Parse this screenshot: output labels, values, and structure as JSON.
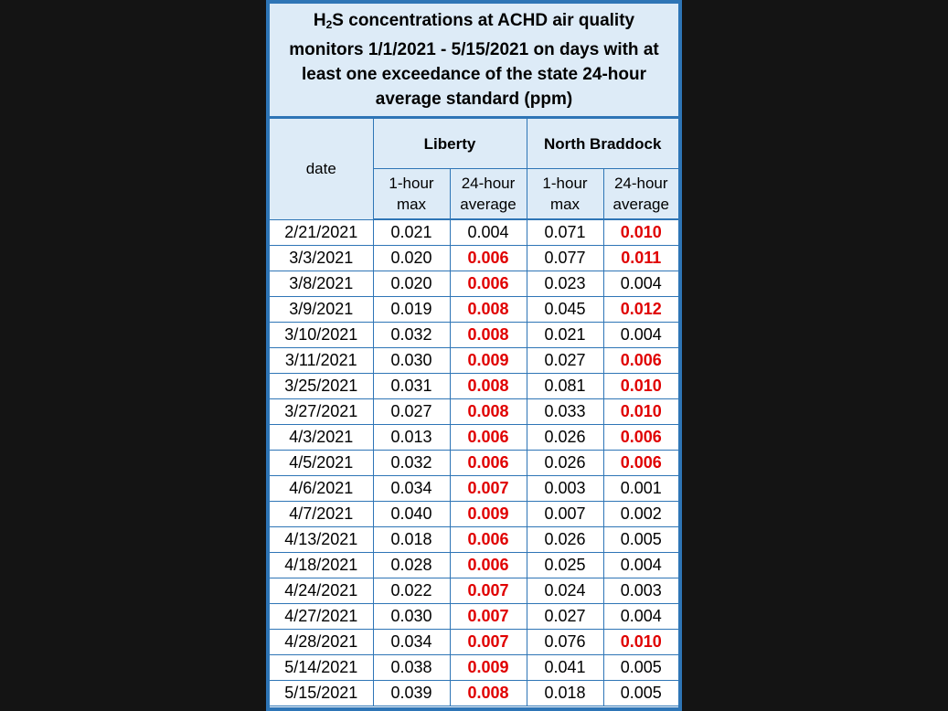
{
  "title": {
    "prefix": "H",
    "subscript": "2",
    "rest": "S concentrations at ACHD air quality monitors 1/1/2021 - 5/15/2021 on days with at least one exceedance of the state 24-hour average standard (ppm)"
  },
  "headers": {
    "date": "date",
    "liberty": "Liberty",
    "north_braddock": "North Braddock",
    "one_hour_max": "1-hour max",
    "twenty_four_hour_avg": "24-hour average"
  },
  "colors": {
    "border": "#2e75b6",
    "header_bg": "#ddebf7",
    "exceedance": "#e00000"
  },
  "rows": [
    {
      "date": "2/21/2021",
      "lib_max": "0.021",
      "lib_avg": "0.004",
      "lib_avg_ex": false,
      "nb_max": "0.071",
      "nb_avg": "0.010",
      "nb_avg_ex": true
    },
    {
      "date": "3/3/2021",
      "lib_max": "0.020",
      "lib_avg": "0.006",
      "lib_avg_ex": true,
      "nb_max": "0.077",
      "nb_avg": "0.011",
      "nb_avg_ex": true
    },
    {
      "date": "3/8/2021",
      "lib_max": "0.020",
      "lib_avg": "0.006",
      "lib_avg_ex": true,
      "nb_max": "0.023",
      "nb_avg": "0.004",
      "nb_avg_ex": false
    },
    {
      "date": "3/9/2021",
      "lib_max": "0.019",
      "lib_avg": "0.008",
      "lib_avg_ex": true,
      "nb_max": "0.045",
      "nb_avg": "0.012",
      "nb_avg_ex": true
    },
    {
      "date": "3/10/2021",
      "lib_max": "0.032",
      "lib_avg": "0.008",
      "lib_avg_ex": true,
      "nb_max": "0.021",
      "nb_avg": "0.004",
      "nb_avg_ex": false
    },
    {
      "date": "3/11/2021",
      "lib_max": "0.030",
      "lib_avg": "0.009",
      "lib_avg_ex": true,
      "nb_max": "0.027",
      "nb_avg": "0.006",
      "nb_avg_ex": true
    },
    {
      "date": "3/25/2021",
      "lib_max": "0.031",
      "lib_avg": "0.008",
      "lib_avg_ex": true,
      "nb_max": "0.081",
      "nb_avg": "0.010",
      "nb_avg_ex": true
    },
    {
      "date": "3/27/2021",
      "lib_max": "0.027",
      "lib_avg": "0.008",
      "lib_avg_ex": true,
      "nb_max": "0.033",
      "nb_avg": "0.010",
      "nb_avg_ex": true
    },
    {
      "date": "4/3/2021",
      "lib_max": "0.013",
      "lib_avg": "0.006",
      "lib_avg_ex": true,
      "nb_max": "0.026",
      "nb_avg": "0.006",
      "nb_avg_ex": true
    },
    {
      "date": "4/5/2021",
      "lib_max": "0.032",
      "lib_avg": "0.006",
      "lib_avg_ex": true,
      "nb_max": "0.026",
      "nb_avg": "0.006",
      "nb_avg_ex": true
    },
    {
      "date": "4/6/2021",
      "lib_max": "0.034",
      "lib_avg": "0.007",
      "lib_avg_ex": true,
      "nb_max": "0.003",
      "nb_avg": "0.001",
      "nb_avg_ex": false
    },
    {
      "date": "4/7/2021",
      "lib_max": "0.040",
      "lib_avg": "0.009",
      "lib_avg_ex": true,
      "nb_max": "0.007",
      "nb_avg": "0.002",
      "nb_avg_ex": false
    },
    {
      "date": "4/13/2021",
      "lib_max": "0.018",
      "lib_avg": "0.006",
      "lib_avg_ex": true,
      "nb_max": "0.026",
      "nb_avg": "0.005",
      "nb_avg_ex": false
    },
    {
      "date": "4/18/2021",
      "lib_max": "0.028",
      "lib_avg": "0.006",
      "lib_avg_ex": true,
      "nb_max": "0.025",
      "nb_avg": "0.004",
      "nb_avg_ex": false
    },
    {
      "date": "4/24/2021",
      "lib_max": "0.022",
      "lib_avg": "0.007",
      "lib_avg_ex": true,
      "nb_max": "0.024",
      "nb_avg": "0.003",
      "nb_avg_ex": false
    },
    {
      "date": "4/27/2021",
      "lib_max": "0.030",
      "lib_avg": "0.007",
      "lib_avg_ex": true,
      "nb_max": "0.027",
      "nb_avg": "0.004",
      "nb_avg_ex": false
    },
    {
      "date": "4/28/2021",
      "lib_max": "0.034",
      "lib_avg": "0.007",
      "lib_avg_ex": true,
      "nb_max": "0.076",
      "nb_avg": "0.010",
      "nb_avg_ex": true
    },
    {
      "date": "5/14/2021",
      "lib_max": "0.038",
      "lib_avg": "0.009",
      "lib_avg_ex": true,
      "nb_max": "0.041",
      "nb_avg": "0.005",
      "nb_avg_ex": false
    },
    {
      "date": "5/15/2021",
      "lib_max": "0.039",
      "lib_avg": "0.008",
      "lib_avg_ex": true,
      "nb_max": "0.018",
      "nb_avg": "0.005",
      "nb_avg_ex": false
    }
  ]
}
